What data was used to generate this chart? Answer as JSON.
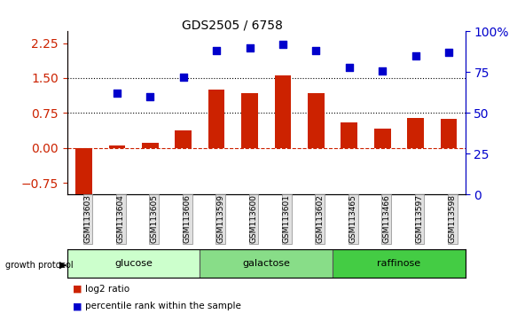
{
  "title": "GDS2505 / 6758",
  "samples": [
    "GSM113603",
    "GSM113604",
    "GSM113605",
    "GSM113606",
    "GSM113599",
    "GSM113600",
    "GSM113601",
    "GSM113602",
    "GSM113465",
    "GSM113466",
    "GSM113597",
    "GSM113598"
  ],
  "log2_ratio": [
    -1.0,
    0.05,
    0.12,
    0.38,
    1.25,
    1.18,
    1.55,
    1.18,
    0.55,
    0.42,
    0.65,
    0.62
  ],
  "pct_rank": [
    null,
    62,
    60,
    72,
    88,
    90,
    92,
    88,
    78,
    76,
    85,
    87
  ],
  "groups": [
    {
      "label": "glucose",
      "start": 0,
      "end": 4,
      "color": "#ccffcc"
    },
    {
      "label": "galactose",
      "start": 4,
      "end": 8,
      "color": "#88dd88"
    },
    {
      "label": "raffinose",
      "start": 8,
      "end": 12,
      "color": "#44cc44"
    }
  ],
  "bar_color": "#cc2200",
  "dot_color": "#0000cc",
  "ylim_left": [
    -1.0,
    2.5
  ],
  "ylim_right": [
    0,
    100
  ],
  "yticks_left": [
    -0.75,
    0.0,
    0.75,
    1.5,
    2.25
  ],
  "yticks_right": [
    0,
    25,
    50,
    75,
    100
  ],
  "hlines": [
    0.75,
    1.5
  ],
  "zero_line_color": "#cc2200",
  "bg_color": "#ffffff"
}
